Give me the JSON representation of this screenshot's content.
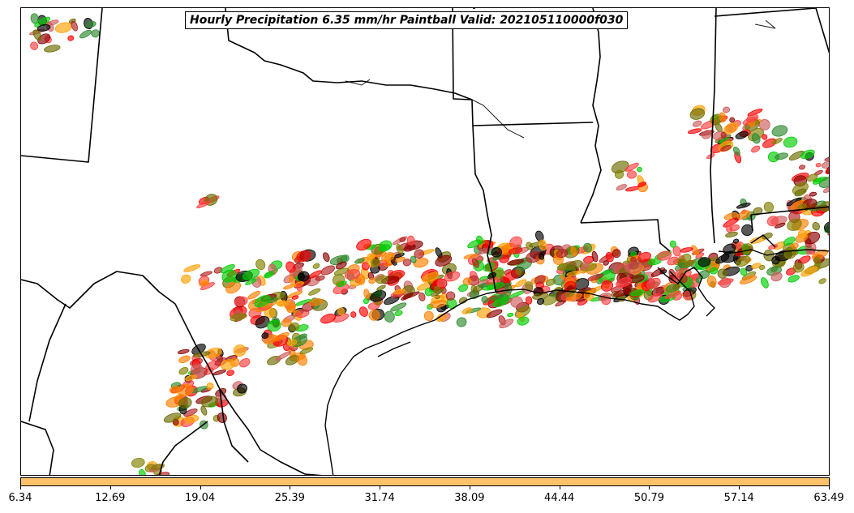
{
  "title": "Hourly Precipitation 6.35 mm/hr Paintball Valid: 202105110000f030",
  "colorbar": {
    "color": "#fec36a",
    "tick_labels": [
      "6.34",
      "12.69",
      "19.04",
      "25.39",
      "31.74",
      "38.09",
      "44.44",
      "50.79",
      "57.14",
      "63.49"
    ]
  },
  "member_colors": [
    "#ff0000",
    "#ff7f00",
    "#ff9f00",
    "#00cc00",
    "#2e8b2e",
    "#808000",
    "#8b0000",
    "#b22222",
    "#ff4040",
    "#000000",
    "#6b6b00",
    "#cd5c5c"
  ],
  "map_features": [
    "state-borders",
    "coastline",
    "rivers"
  ]
}
